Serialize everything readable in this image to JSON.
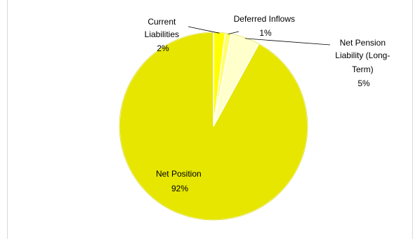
{
  "chart_data": {
    "type": "pie",
    "title": "",
    "slices": [
      {
        "label": "Current Liabilities",
        "value": 2,
        "percent_label": "2%",
        "color": "#ffff00"
      },
      {
        "label": "Deferred Inflows",
        "value": 1,
        "percent_label": "1%",
        "color": "#ffff66"
      },
      {
        "label": "Net Pension Liability (Long-Term)",
        "value": 5,
        "percent_label": "5%",
        "color": "#ffffcc"
      },
      {
        "label": "Net Position",
        "value": 92,
        "percent_label": "92%",
        "color": "#e6e600"
      }
    ],
    "legend": "none",
    "data_labels": "category-and-percent"
  }
}
